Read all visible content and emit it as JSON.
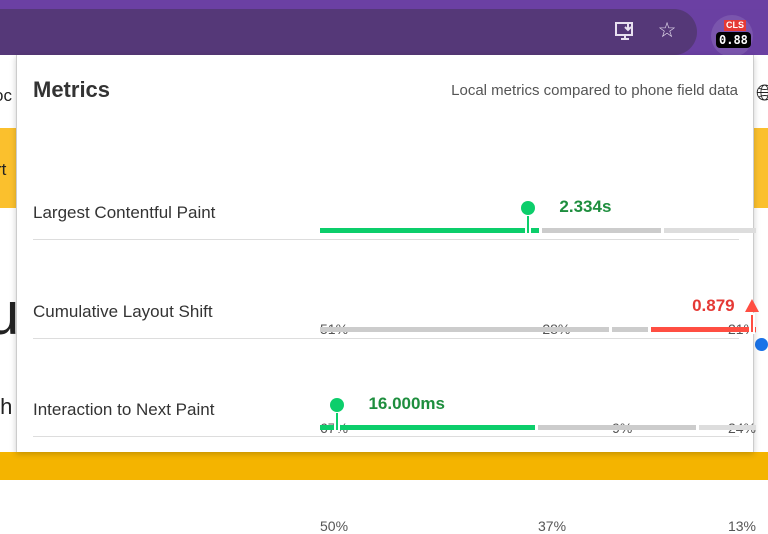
{
  "toolbar": {
    "icons": [
      "install-app-icon",
      "bookmark-star-icon"
    ],
    "extension": {
      "badge_label": "CLS",
      "badge_value": "0.88",
      "badge_color": "#e53935"
    }
  },
  "background_page": {
    "left_texts": [
      "oc",
      "rt",
      "u",
      "th"
    ]
  },
  "popup": {
    "title": "Metrics",
    "subtitle": "Local metrics compared to phone field data",
    "metrics": [
      {
        "name": "Largest Contentful Paint",
        "value": "2.334s",
        "status": "good",
        "distribution": [
          {
            "pct": "51%",
            "share": 51,
            "color": "#0cce6b"
          },
          {
            "pct": "28%",
            "share": 28,
            "color": "#cccccc"
          },
          {
            "pct": "21%",
            "share": 21,
            "color": "#dddddd"
          }
        ],
        "marker_fraction": 0.478,
        "value_color": "#1e8e3e"
      },
      {
        "name": "Cumulative Layout Shift",
        "value": "0.879",
        "status": "poor",
        "distribution": [
          {
            "pct": "67%",
            "share": 67,
            "color": "#cccccc"
          },
          {
            "pct": "9%",
            "share": 9,
            "color": "#cccccc"
          },
          {
            "pct": "24%",
            "share": 24,
            "color": "#ff4e42"
          }
        ],
        "marker_fraction": 0.99,
        "value_color": "#e53935"
      },
      {
        "name": "Interaction to Next Paint",
        "value": "16.000ms",
        "status": "good",
        "distribution": [
          {
            "pct": "50%",
            "share": 50,
            "color": "#0cce6b"
          },
          {
            "pct": "37%",
            "share": 37,
            "color": "#cccccc"
          },
          {
            "pct": "13%",
            "share": 13,
            "color": "#dddddd"
          }
        ],
        "marker_fraction": 0.04,
        "value_color": "#1e8e3e"
      }
    ]
  }
}
